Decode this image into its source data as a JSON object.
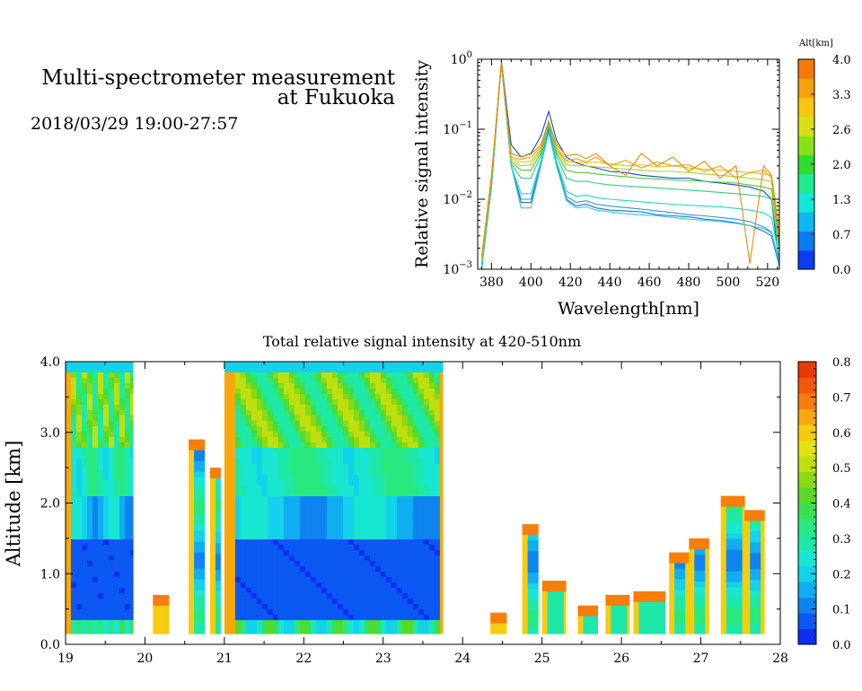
{
  "header": {
    "title_line1": "Multi-spectrometer measurement",
    "title_line2": "at Fukuoka",
    "datetime": "2018/03/29 19:00-27:57"
  },
  "chart_data": [
    {
      "type": "line",
      "name": "spectrum",
      "xlabel": "Wavelength[nm]",
      "ylabel": "Relative signal intensity",
      "xlim": [
        373,
        526
      ],
      "ylim": [
        0.001,
        1
      ],
      "yscale": "log",
      "x_ticks": [
        380,
        400,
        420,
        440,
        460,
        480,
        500,
        520
      ],
      "y_ticks": [
        {
          "value": 1,
          "label": "10",
          "exp": "0"
        },
        {
          "value": 0.1,
          "label": "10",
          "exp": "−1"
        },
        {
          "value": 0.01,
          "label": "10",
          "exp": "−2"
        },
        {
          "value": 0.001,
          "label": "10",
          "exp": "−3"
        }
      ],
      "x": [
        375,
        380,
        385,
        390,
        395,
        400,
        405,
        409,
        413,
        418,
        423,
        428,
        433,
        440,
        448,
        456,
        464,
        472,
        480,
        488,
        496,
        504,
        511,
        518,
        522,
        526
      ],
      "colorbar": {
        "label": "Alt[km]",
        "min": 0.0,
        "max": 4.0,
        "tick_labels": [
          "0.0",
          "0.7",
          "1.3",
          "2.0",
          "2.6",
          "3.3",
          "4.0"
        ],
        "colors": [
          "#0a3df5",
          "#0a7df5",
          "#0db8f0",
          "#12e6d8",
          "#1ee890",
          "#2fdc2f",
          "#8ae015",
          "#d6e013",
          "#f7c60f",
          "#f7a10c",
          "#f57a0a"
        ]
      },
      "series": [
        {
          "color": "#1048d0",
          "values": [
            0.001,
            0.02,
            0.95,
            0.06,
            0.04,
            0.045,
            0.08,
            0.18,
            0.07,
            0.04,
            0.033,
            0.03,
            0.028,
            0.025,
            0.024,
            0.022,
            0.021,
            0.02,
            0.02,
            0.018,
            0.017,
            0.016,
            0.015,
            0.013,
            0.01,
            0.0011
          ]
        },
        {
          "color": "#1f6fd8",
          "values": [
            0.001,
            0.015,
            0.9,
            0.03,
            0.009,
            0.009,
            0.03,
            0.1,
            0.03,
            0.01,
            0.008,
            0.0085,
            0.0075,
            0.007,
            0.0068,
            0.0066,
            0.006,
            0.0058,
            0.0056,
            0.0052,
            0.005,
            0.0046,
            0.0042,
            0.0035,
            0.003,
            0.0011
          ]
        },
        {
          "color": "#2a98dc",
          "values": [
            0.001,
            0.016,
            0.9,
            0.03,
            0.01,
            0.01,
            0.033,
            0.11,
            0.033,
            0.011,
            0.009,
            0.0095,
            0.0085,
            0.008,
            0.0076,
            0.0072,
            0.0068,
            0.0064,
            0.006,
            0.0058,
            0.0055,
            0.0052,
            0.0048,
            0.004,
            0.0034,
            0.0012
          ]
        },
        {
          "color": "#30c8e0",
          "values": [
            0.001,
            0.016,
            0.9,
            0.03,
            0.0075,
            0.0075,
            0.03,
            0.09,
            0.03,
            0.0095,
            0.0075,
            0.0078,
            0.007,
            0.0066,
            0.0062,
            0.006,
            0.0058,
            0.0055,
            0.0052,
            0.005,
            0.0048,
            0.0045,
            0.0042,
            0.0038,
            0.0033,
            0.0012
          ]
        },
        {
          "color": "#24d8c4",
          "values": [
            0.001,
            0.017,
            0.9,
            0.03,
            0.012,
            0.012,
            0.035,
            0.12,
            0.035,
            0.013,
            0.011,
            0.0115,
            0.0105,
            0.01,
            0.0096,
            0.0092,
            0.0088,
            0.0085,
            0.0082,
            0.008,
            0.0078,
            0.0074,
            0.007,
            0.0064,
            0.0055,
            0.0014
          ]
        },
        {
          "color": "#2ed07a",
          "values": [
            0.0012,
            0.018,
            0.9,
            0.032,
            0.02,
            0.02,
            0.042,
            0.13,
            0.042,
            0.02,
            0.018,
            0.018,
            0.017,
            0.016,
            0.0155,
            0.015,
            0.0145,
            0.014,
            0.0135,
            0.013,
            0.0125,
            0.012,
            0.0115,
            0.011,
            0.01,
            0.0018
          ]
        },
        {
          "color": "#4ccc2a",
          "values": [
            0.0012,
            0.019,
            0.9,
            0.034,
            0.026,
            0.026,
            0.046,
            0.13,
            0.046,
            0.026,
            0.024,
            0.024,
            0.023,
            0.022,
            0.021,
            0.02,
            0.0195,
            0.019,
            0.0185,
            0.018,
            0.0175,
            0.017,
            0.016,
            0.015,
            0.014,
            0.0022
          ]
        },
        {
          "color": "#a8d418",
          "values": [
            0.0013,
            0.02,
            0.9,
            0.036,
            0.03,
            0.031,
            0.05,
            0.13,
            0.05,
            0.031,
            0.03,
            0.03,
            0.029,
            0.028,
            0.027,
            0.026,
            0.025,
            0.025,
            0.024,
            0.023,
            0.022,
            0.021,
            0.02,
            0.019,
            0.018,
            0.003
          ]
        },
        {
          "color": "#e6c410",
          "values": [
            0.0014,
            0.021,
            0.9,
            0.038,
            0.034,
            0.035,
            0.052,
            0.13,
            0.052,
            0.034,
            0.034,
            0.033,
            0.034,
            0.032,
            0.03,
            0.031,
            0.029,
            0.03,
            0.028,
            0.027,
            0.026,
            0.025,
            0.024,
            0.023,
            0.022,
            0.004
          ]
        },
        {
          "color": "#f0a00c",
          "values": [
            0.0015,
            0.022,
            0.9,
            0.04,
            0.037,
            0.04,
            0.055,
            0.13,
            0.055,
            0.036,
            0.038,
            0.034,
            0.04,
            0.03,
            0.036,
            0.028,
            0.034,
            0.03,
            0.031,
            0.025,
            0.03,
            0.02,
            0.024,
            0.026,
            0.02,
            0.003
          ]
        },
        {
          "color": "#e88a0a",
          "values": [
            0.0015,
            0.022,
            0.9,
            0.045,
            0.04,
            0.044,
            0.06,
            0.13,
            0.06,
            0.042,
            0.044,
            0.038,
            0.045,
            0.03,
            0.022,
            0.045,
            0.03,
            0.04,
            0.025,
            0.035,
            0.02,
            0.03,
            0.0012,
            0.03,
            0.022,
            0.0025
          ]
        }
      ]
    },
    {
      "type": "heatmap",
      "name": "curtain",
      "title": "Total relative signal intensity at 420-510nm",
      "ylabel": "Altitude [km]",
      "xlim": [
        19,
        28
      ],
      "ylim": [
        0,
        4
      ],
      "x_ticks": [
        19,
        20,
        21,
        22,
        23,
        24,
        25,
        26,
        27,
        28
      ],
      "y_ticks": [
        "0.0",
        "1.0",
        "2.0",
        "3.0",
        "4.0"
      ],
      "data_bottom_km": 0.15,
      "colorbar": {
        "min": 0.0,
        "max": 0.8,
        "tick_labels": [
          "0.0",
          "0.1",
          "0.2",
          "0.3",
          "0.4",
          "0.5",
          "0.6",
          "0.7",
          "0.8"
        ],
        "colors": [
          "#0b30f0",
          "#0b58f2",
          "#0d84f0",
          "#10adf0",
          "#14d2ea",
          "#18e6d0",
          "#1ee8a8",
          "#28e880",
          "#38e055",
          "#5ad82a",
          "#8cd812",
          "#bede10",
          "#e6e010",
          "#f7cc0e",
          "#f7a80c",
          "#f77e0a",
          "#f25808",
          "#e83a08"
        ]
      },
      "regions": [
        {
          "t0": 19.0,
          "t1": 19.85,
          "top": 4.0,
          "profile": "dense"
        },
        {
          "t0": 20.1,
          "t1": 20.3,
          "top": 0.7,
          "profile": "edge"
        },
        {
          "t0": 20.55,
          "t1": 20.75,
          "top": 2.9,
          "profile": "column"
        },
        {
          "t0": 20.82,
          "t1": 20.95,
          "top": 2.5,
          "profile": "column"
        },
        {
          "t0": 21.0,
          "t1": 23.75,
          "top": 4.0,
          "profile": "dense"
        },
        {
          "t0": 24.35,
          "t1": 24.55,
          "top": 0.45,
          "profile": "edge"
        },
        {
          "t0": 24.75,
          "t1": 24.95,
          "top": 1.7,
          "profile": "column"
        },
        {
          "t0": 25.0,
          "t1": 25.3,
          "top": 0.9,
          "profile": "low"
        },
        {
          "t0": 25.45,
          "t1": 25.7,
          "top": 0.55,
          "profile": "low"
        },
        {
          "t0": 25.8,
          "t1": 26.1,
          "top": 0.7,
          "profile": "low"
        },
        {
          "t0": 26.15,
          "t1": 26.55,
          "top": 0.75,
          "profile": "low"
        },
        {
          "t0": 26.6,
          "t1": 26.85,
          "top": 1.3,
          "profile": "column"
        },
        {
          "t0": 26.85,
          "t1": 27.1,
          "top": 1.5,
          "profile": "column"
        },
        {
          "t0": 27.25,
          "t1": 27.55,
          "top": 2.1,
          "profile": "column"
        },
        {
          "t0": 27.55,
          "t1": 27.8,
          "top": 1.9,
          "profile": "column"
        }
      ]
    }
  ]
}
